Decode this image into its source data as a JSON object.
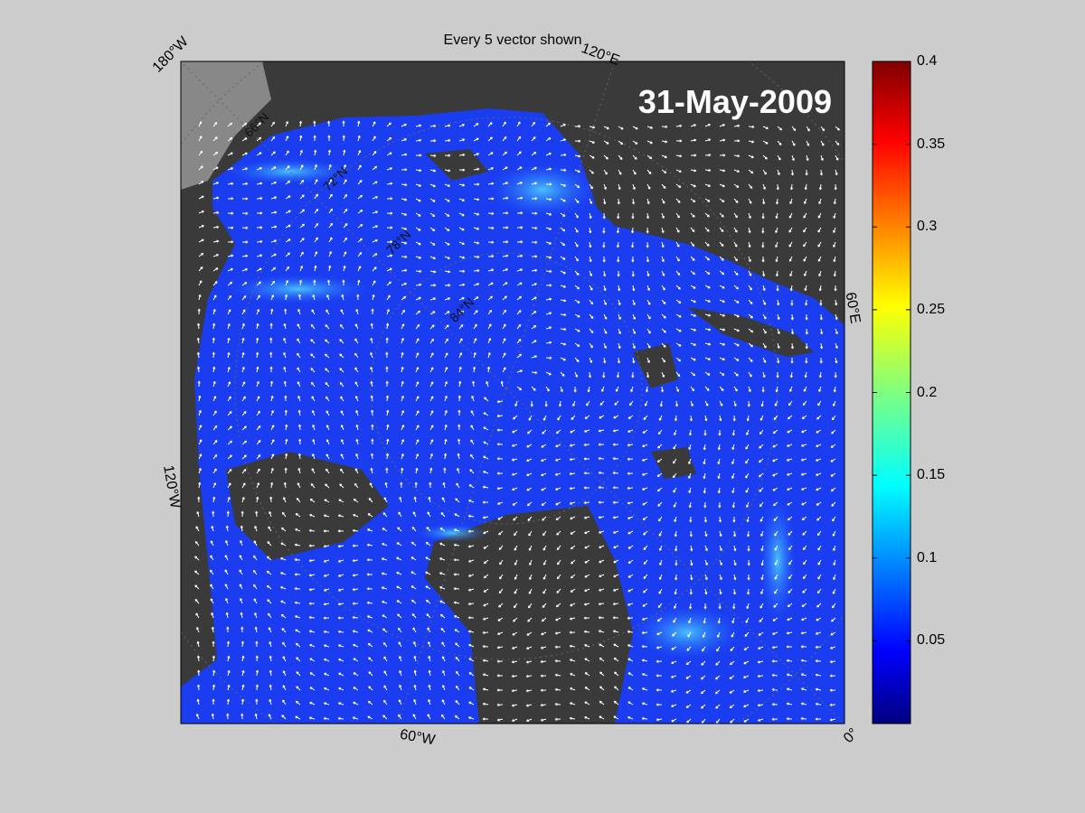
{
  "title": "Every 5 vector shown",
  "date": "31-May-2009",
  "edge_labels": {
    "top_left": "180°W",
    "top_right": "120°E",
    "right": "60°E",
    "left": "120°W",
    "bottom": "60°W",
    "bottom_right": "0°"
  },
  "inner_labels": {
    "lat_a": "66°N",
    "lat_b": "72°N",
    "lat_c": "78°N",
    "lat_d": "84°N"
  },
  "colorbar": {
    "range": [
      0,
      0.4
    ],
    "ticks": [
      {
        "value": 0.4,
        "label": "0.4"
      },
      {
        "value": 0.35,
        "label": "0.35"
      },
      {
        "value": 0.3,
        "label": "0.3"
      },
      {
        "value": 0.25,
        "label": "0.25"
      },
      {
        "value": 0.2,
        "label": "0.2"
      },
      {
        "value": 0.15,
        "label": "0.15"
      },
      {
        "value": 0.1,
        "label": "0.1"
      },
      {
        "value": 0.05,
        "label": "0.05"
      }
    ],
    "colormap": "jet"
  },
  "colors": {
    "background": "#cccccc",
    "land": "#3a3a3a",
    "ice": "#1a3df0",
    "vectors": "#ffffff"
  }
}
